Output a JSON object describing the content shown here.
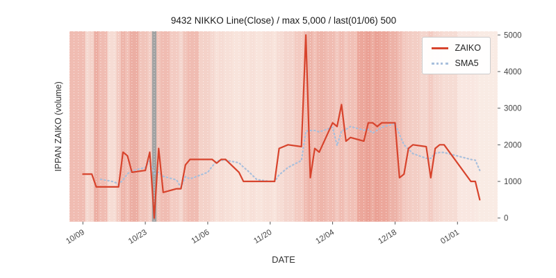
{
  "figure": {
    "title": "9432 NIKKO Line(Close) / max 5,000 / last(01/06) 500",
    "xlabel": "DATE",
    "ylabel": "IPPAN ZAIKO (volume)"
  },
  "legend": {
    "items": [
      {
        "label": "ZAIKO",
        "style": "solid",
        "color": "#d7432c"
      },
      {
        "label": "SMA5",
        "style": "dotted",
        "color": "#a8bfdc"
      }
    ]
  },
  "chart_data": {
    "type": "line",
    "title": "9432 NIKKO Line(Close) / max 5,000 / last(01/06) 500",
    "xlabel": "DATE",
    "ylabel": "IPPAN ZAIKO (volume)",
    "legend_position": "upper right",
    "grid": "vertical-day-dotted",
    "x_dates": [
      "10/09",
      "10/10",
      "10/11",
      "10/12",
      "10/13",
      "10/16",
      "10/17",
      "10/18",
      "10/19",
      "10/20",
      "10/23",
      "10/24",
      "10/25",
      "10/26",
      "10/27",
      "10/30",
      "10/31",
      "11/01",
      "11/02",
      "11/06",
      "11/07",
      "11/08",
      "11/09",
      "11/10",
      "11/13",
      "11/14",
      "11/15",
      "11/16",
      "11/17",
      "11/20",
      "11/21",
      "11/22",
      "11/24",
      "11/27",
      "11/28",
      "11/29",
      "11/30",
      "12/01",
      "12/04",
      "12/05",
      "12/06",
      "12/07",
      "12/08",
      "12/11",
      "12/12",
      "12/13",
      "12/14",
      "12/15",
      "12/18",
      "12/19",
      "12/20",
      "12/21",
      "12/22",
      "12/25",
      "12/26",
      "12/27",
      "12/28",
      "12/29",
      "01/04",
      "01/05",
      "01/06"
    ],
    "day_offsets": [
      0,
      1,
      2,
      3,
      4,
      7,
      8,
      9,
      10,
      11,
      14,
      15,
      16,
      17,
      18,
      21,
      22,
      23,
      24,
      28,
      29,
      30,
      31,
      32,
      35,
      36,
      37,
      38,
      39,
      42,
      43,
      44,
      46,
      49,
      50,
      51,
      52,
      53,
      56,
      57,
      58,
      59,
      60,
      63,
      64,
      65,
      66,
      67,
      70,
      71,
      72,
      73,
      74,
      77,
      78,
      79,
      80,
      81,
      87,
      88,
      89
    ],
    "series": [
      {
        "name": "ZAIKO",
        "color": "#d7432c",
        "style": "solid",
        "values": [
          1200,
          1200,
          1200,
          850,
          850,
          850,
          850,
          1800,
          1700,
          1250,
          1300,
          1800,
          0,
          1900,
          700,
          800,
          800,
          1450,
          1600,
          1600,
          1600,
          1500,
          1600,
          1600,
          1250,
          1000,
          1000,
          1000,
          1000,
          1000,
          1000,
          1900,
          2000,
          1950,
          5000,
          1100,
          1900,
          1800,
          2600,
          2500,
          3100,
          2100,
          2200,
          2100,
          2600,
          2600,
          2500,
          2600,
          2600,
          1100,
          1200,
          1900,
          2000,
          1950,
          1100,
          1900,
          2000,
          2000,
          1000,
          1000,
          500
        ]
      },
      {
        "name": "SMA5",
        "color": "#a8bfdc",
        "style": "dotted",
        "values": [
          null,
          null,
          null,
          null,
          1060,
          990,
          920,
          1040,
          1210,
          1290,
          1380,
          1570,
          1210,
          1250,
          1140,
          1040,
          840,
          1130,
          1070,
          1250,
          1410,
          1550,
          1580,
          1580,
          1510,
          1390,
          1290,
          1170,
          1050,
          1000,
          1000,
          1180,
          1380,
          1570,
          2370,
          2390,
          2390,
          2350,
          2480,
          1980,
          2380,
          2420,
          2500,
          2400,
          2420,
          2320,
          2400,
          2480,
          2580,
          2280,
          2000,
          1880,
          1760,
          1630,
          1630,
          1770,
          1790,
          1790,
          1600,
          1580,
          1300
        ]
      }
    ],
    "x_ticks": {
      "labels": [
        "10/09",
        "10/23",
        "11/06",
        "11/20",
        "12/04",
        "12/18",
        "01/01"
      ],
      "day_offsets": [
        0,
        14,
        28,
        42,
        56,
        70,
        84
      ]
    },
    "y_ticks": [
      0,
      1000,
      2000,
      3000,
      4000,
      5000
    ],
    "y_ticks_side": "right",
    "ylim": [
      -100,
      5100
    ],
    "xlim_days": [
      -3,
      93
    ],
    "background": {
      "plot_bg": "#fbf2ec",
      "band_base_rgb": [
        214,
        64,
        44
      ],
      "band_alphas": [
        0.3,
        0.14,
        0.18,
        0.38,
        0.3,
        0.12,
        0.22,
        0.34,
        0.28,
        0.38,
        0.26,
        0.2,
        0.0,
        0.26,
        0.3,
        0.22,
        0.16,
        0.26,
        0.3,
        0.18,
        0.14,
        0.1,
        0.12,
        0.1,
        0.08,
        0.1,
        0.08,
        0.1,
        0.08,
        0.1,
        0.08,
        0.12,
        0.16,
        0.22,
        0.3,
        0.34,
        0.28,
        0.34,
        0.3,
        0.24,
        0.3,
        0.24,
        0.28,
        0.42,
        0.46,
        0.4,
        0.46,
        0.42,
        0.36,
        0.3,
        0.24,
        0.22,
        0.2,
        0.16,
        0.22,
        0.16,
        0.14,
        0.12,
        0.06,
        0.05,
        0.04
      ],
      "special_bands": {
        "12": "#a2a2a2"
      },
      "day_grid_color": "rgba(255,255,255,0.7)",
      "tick_color": "#555555",
      "tick_label_color": "#444444"
    }
  }
}
